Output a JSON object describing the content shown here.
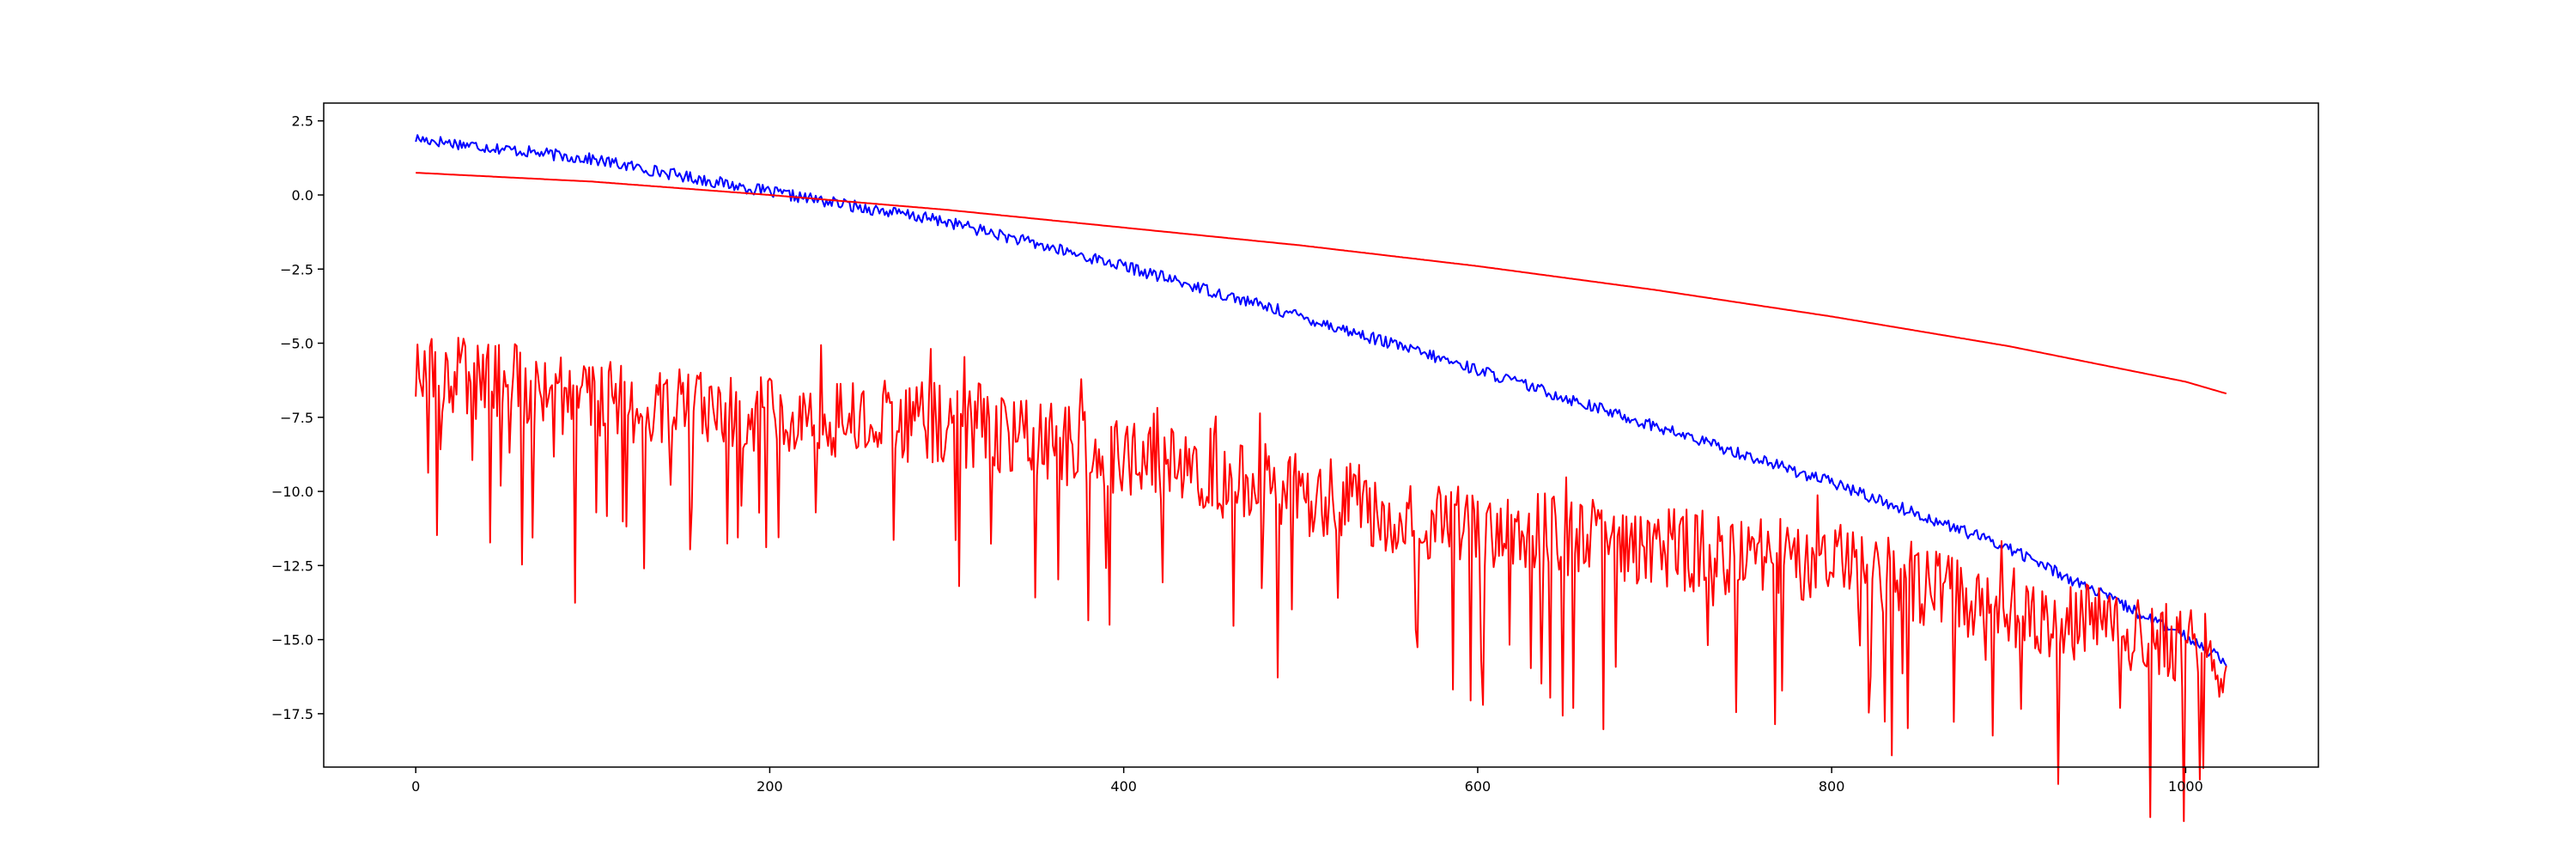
{
  "chart_data": {
    "type": "line",
    "title": "",
    "xlabel": "",
    "ylabel": "",
    "xlim": [
      -52,
      1075
    ],
    "ylim": [
      -19.3,
      3.1
    ],
    "grid": false,
    "legend": "none",
    "x_ticks": [
      0,
      200,
      400,
      600,
      800,
      1000
    ],
    "y_ticks": [
      2.5,
      0.0,
      -2.5,
      -5.0,
      -7.5,
      -10.0,
      -12.5,
      -15.0,
      -17.5
    ],
    "x_tick_labels": [
      "0",
      "200",
      "400",
      "600",
      "800",
      "1000"
    ],
    "y_tick_labels": [
      "2.5",
      "0.0",
      "−2.5",
      "−5.0",
      "−7.5",
      "−10.0",
      "−12.5",
      "−15.0",
      "−17.5"
    ],
    "series": [
      {
        "color": "#0000ff",
        "style": "noisy",
        "noise_amplitude": 0.2,
        "x": [
          0,
          100,
          200,
          300,
          400,
          500,
          600,
          700,
          800,
          900,
          1000,
          1023
        ],
        "y": [
          1.9,
          1.2,
          0.1,
          -0.9,
          -2.4,
          -4.1,
          -5.9,
          -7.8,
          -9.7,
          -11.9,
          -14.9,
          -15.7
        ]
      },
      {
        "color": "#ff0000",
        "style": "smooth",
        "noise_amplitude": 0,
        "x": [
          0,
          100,
          200,
          300,
          400,
          500,
          600,
          700,
          800,
          900,
          1000,
          1023
        ],
        "y": [
          0.75,
          0.45,
          0.0,
          -0.5,
          -1.1,
          -1.7,
          -2.4,
          -3.2,
          -4.1,
          -5.1,
          -6.3,
          -6.7
        ]
      },
      {
        "color": "#ff0000",
        "style": "spiky",
        "noise_amplitude": 1.4,
        "x": [
          0,
          100,
          200,
          300,
          400,
          500,
          600,
          700,
          800,
          900,
          1000,
          1023
        ],
        "y": [
          -5.8,
          -6.9,
          -7.4,
          -7.7,
          -8.9,
          -10.1,
          -11.2,
          -11.9,
          -12.4,
          -13.9,
          -15.3,
          -15.6
        ]
      }
    ]
  }
}
